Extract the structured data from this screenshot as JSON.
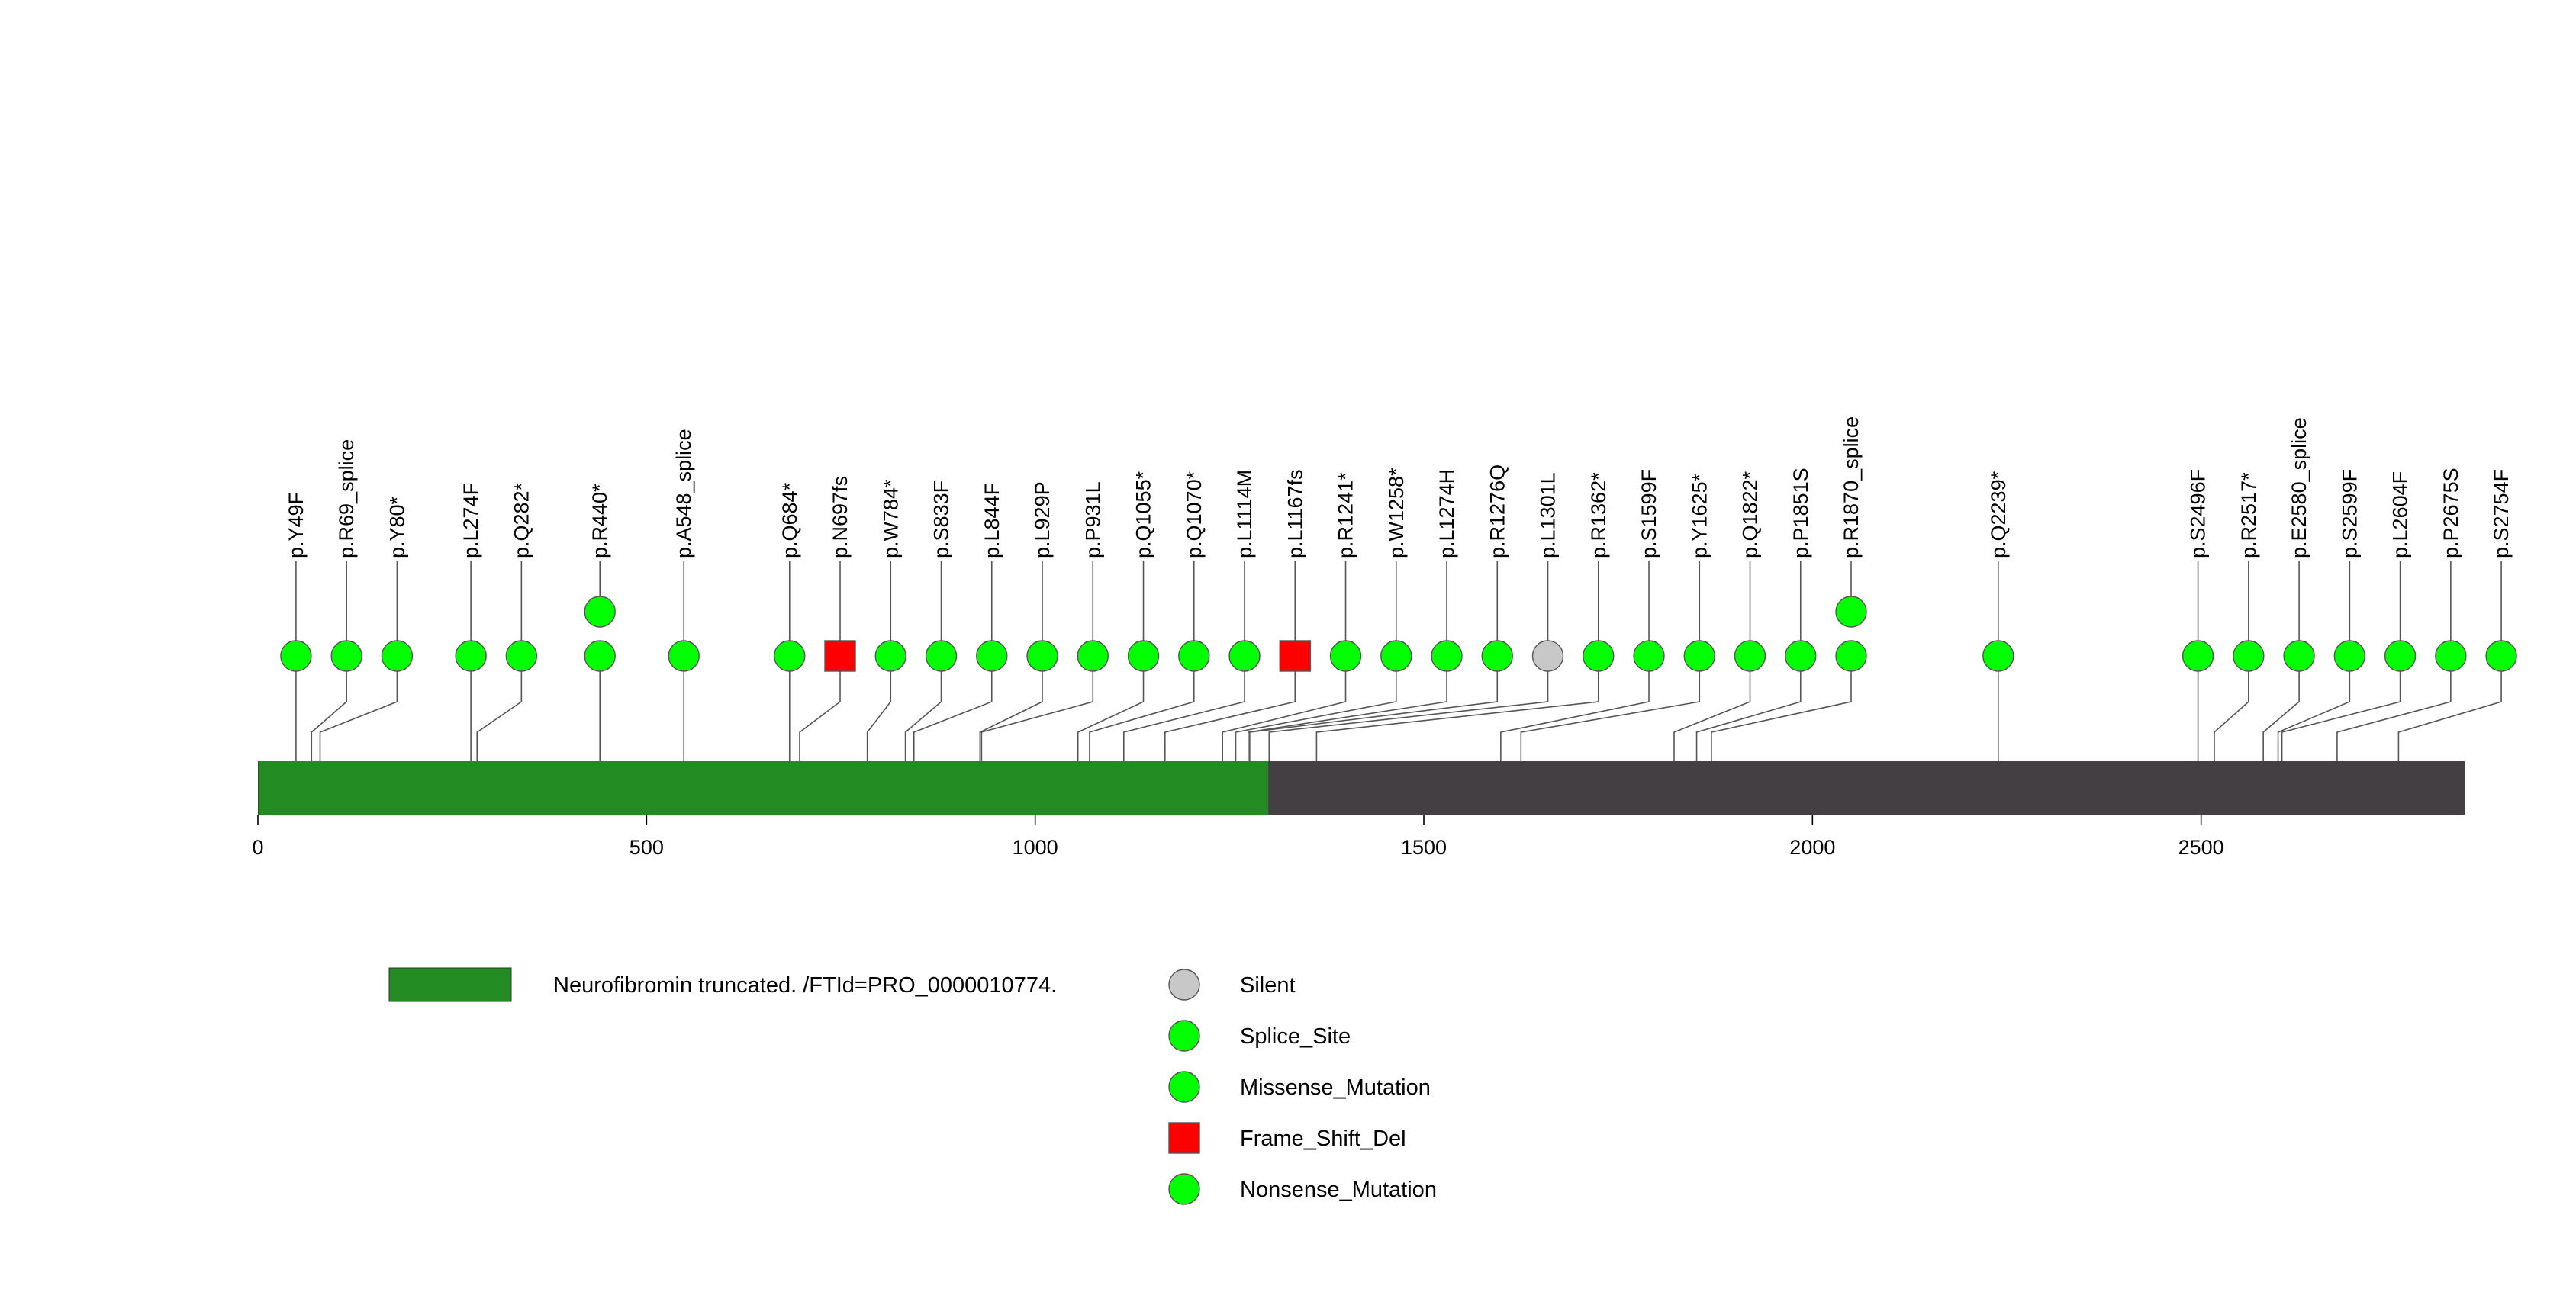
{
  "chart_data": {
    "type": "lollipop",
    "title": "",
    "xlabel": "",
    "ylabel": "",
    "protein_length": 2839,
    "xlim": [
      0,
      2839
    ],
    "x_ticks": [
      0,
      500,
      1000,
      1500,
      2000,
      2500
    ],
    "domains": [
      {
        "name": "Neurofibromin truncated. /FTId=PRO_0000010774.",
        "start": 1,
        "end": 1300,
        "color": "#228b22"
      }
    ],
    "backbone_color": "#433f42",
    "mutation_types": [
      {
        "name": "Silent",
        "color": "#c8c8c8",
        "shape": "circle"
      },
      {
        "name": "Splice_Site",
        "color": "#00ff00",
        "shape": "circle"
      },
      {
        "name": "Missense_Mutation",
        "color": "#00ff00",
        "shape": "circle"
      },
      {
        "name": "Frame_Shift_Del",
        "color": "#ff0000",
        "shape": "square"
      },
      {
        "name": "Nonsense_Mutation",
        "color": "#00ff00",
        "shape": "circle"
      }
    ],
    "mutations": [
      {
        "label": "p.Y49F",
        "position": 49,
        "count": 1,
        "type": "Missense_Mutation"
      },
      {
        "label": "p.R69_splice",
        "position": 69,
        "count": 1,
        "type": "Splice_Site"
      },
      {
        "label": "p.Y80*",
        "position": 80,
        "count": 1,
        "type": "Nonsense_Mutation"
      },
      {
        "label": "p.L274F",
        "position": 274,
        "count": 1,
        "type": "Missense_Mutation"
      },
      {
        "label": "p.Q282*",
        "position": 282,
        "count": 1,
        "type": "Nonsense_Mutation"
      },
      {
        "label": "p.R440*",
        "position": 440,
        "count": 2,
        "type": "Nonsense_Mutation"
      },
      {
        "label": "p.A548_splice",
        "position": 548,
        "count": 1,
        "type": "Splice_Site"
      },
      {
        "label": "p.Q684*",
        "position": 684,
        "count": 1,
        "type": "Nonsense_Mutation"
      },
      {
        "label": "p.N697fs",
        "position": 697,
        "count": 1,
        "type": "Frame_Shift_Del"
      },
      {
        "label": "p.W784*",
        "position": 784,
        "count": 1,
        "type": "Nonsense_Mutation"
      },
      {
        "label": "p.S833F",
        "position": 833,
        "count": 1,
        "type": "Missense_Mutation"
      },
      {
        "label": "p.L844F",
        "position": 844,
        "count": 1,
        "type": "Missense_Mutation"
      },
      {
        "label": "p.L929P",
        "position": 929,
        "count": 1,
        "type": "Missense_Mutation"
      },
      {
        "label": "p.P931L",
        "position": 931,
        "count": 1,
        "type": "Missense_Mutation"
      },
      {
        "label": "p.Q1055*",
        "position": 1055,
        "count": 1,
        "type": "Nonsense_Mutation"
      },
      {
        "label": "p.Q1070*",
        "position": 1070,
        "count": 1,
        "type": "Nonsense_Mutation"
      },
      {
        "label": "p.L1114M",
        "position": 1114,
        "count": 1,
        "type": "Missense_Mutation"
      },
      {
        "label": "p.L1167fs",
        "position": 1167,
        "count": 1,
        "type": "Frame_Shift_Del"
      },
      {
        "label": "p.R1241*",
        "position": 1241,
        "count": 1,
        "type": "Nonsense_Mutation"
      },
      {
        "label": "p.W1258*",
        "position": 1258,
        "count": 1,
        "type": "Nonsense_Mutation"
      },
      {
        "label": "p.L1274H",
        "position": 1274,
        "count": 1,
        "type": "Missense_Mutation"
      },
      {
        "label": "p.R1276Q",
        "position": 1276,
        "count": 1,
        "type": "Missense_Mutation"
      },
      {
        "label": "p.L1301L",
        "position": 1301,
        "count": 1,
        "type": "Silent"
      },
      {
        "label": "p.R1362*",
        "position": 1362,
        "count": 1,
        "type": "Nonsense_Mutation"
      },
      {
        "label": "p.S1599F",
        "position": 1599,
        "count": 1,
        "type": "Missense_Mutation"
      },
      {
        "label": "p.Y1625*",
        "position": 1625,
        "count": 1,
        "type": "Nonsense_Mutation"
      },
      {
        "label": "p.Q1822*",
        "position": 1822,
        "count": 1,
        "type": "Nonsense_Mutation"
      },
      {
        "label": "p.P1851S",
        "position": 1851,
        "count": 1,
        "type": "Missense_Mutation"
      },
      {
        "label": "p.R1870_splice",
        "position": 1870,
        "count": 2,
        "type": "Splice_Site"
      },
      {
        "label": "p.Q2239*",
        "position": 2239,
        "count": 1,
        "type": "Nonsense_Mutation"
      },
      {
        "label": "p.S2496F",
        "position": 2496,
        "count": 1,
        "type": "Missense_Mutation"
      },
      {
        "label": "p.R2517*",
        "position": 2517,
        "count": 1,
        "type": "Nonsense_Mutation"
      },
      {
        "label": "p.E2580_splice",
        "position": 2580,
        "count": 1,
        "type": "Splice_Site"
      },
      {
        "label": "p.S2599F",
        "position": 2599,
        "count": 1,
        "type": "Missense_Mutation"
      },
      {
        "label": "p.L2604F",
        "position": 2604,
        "count": 1,
        "type": "Missense_Mutation"
      },
      {
        "label": "p.P2675S",
        "position": 2675,
        "count": 1,
        "type": "Missense_Mutation"
      },
      {
        "label": "p.S2754F",
        "position": 2754,
        "count": 1,
        "type": "Missense_Mutation"
      }
    ]
  }
}
